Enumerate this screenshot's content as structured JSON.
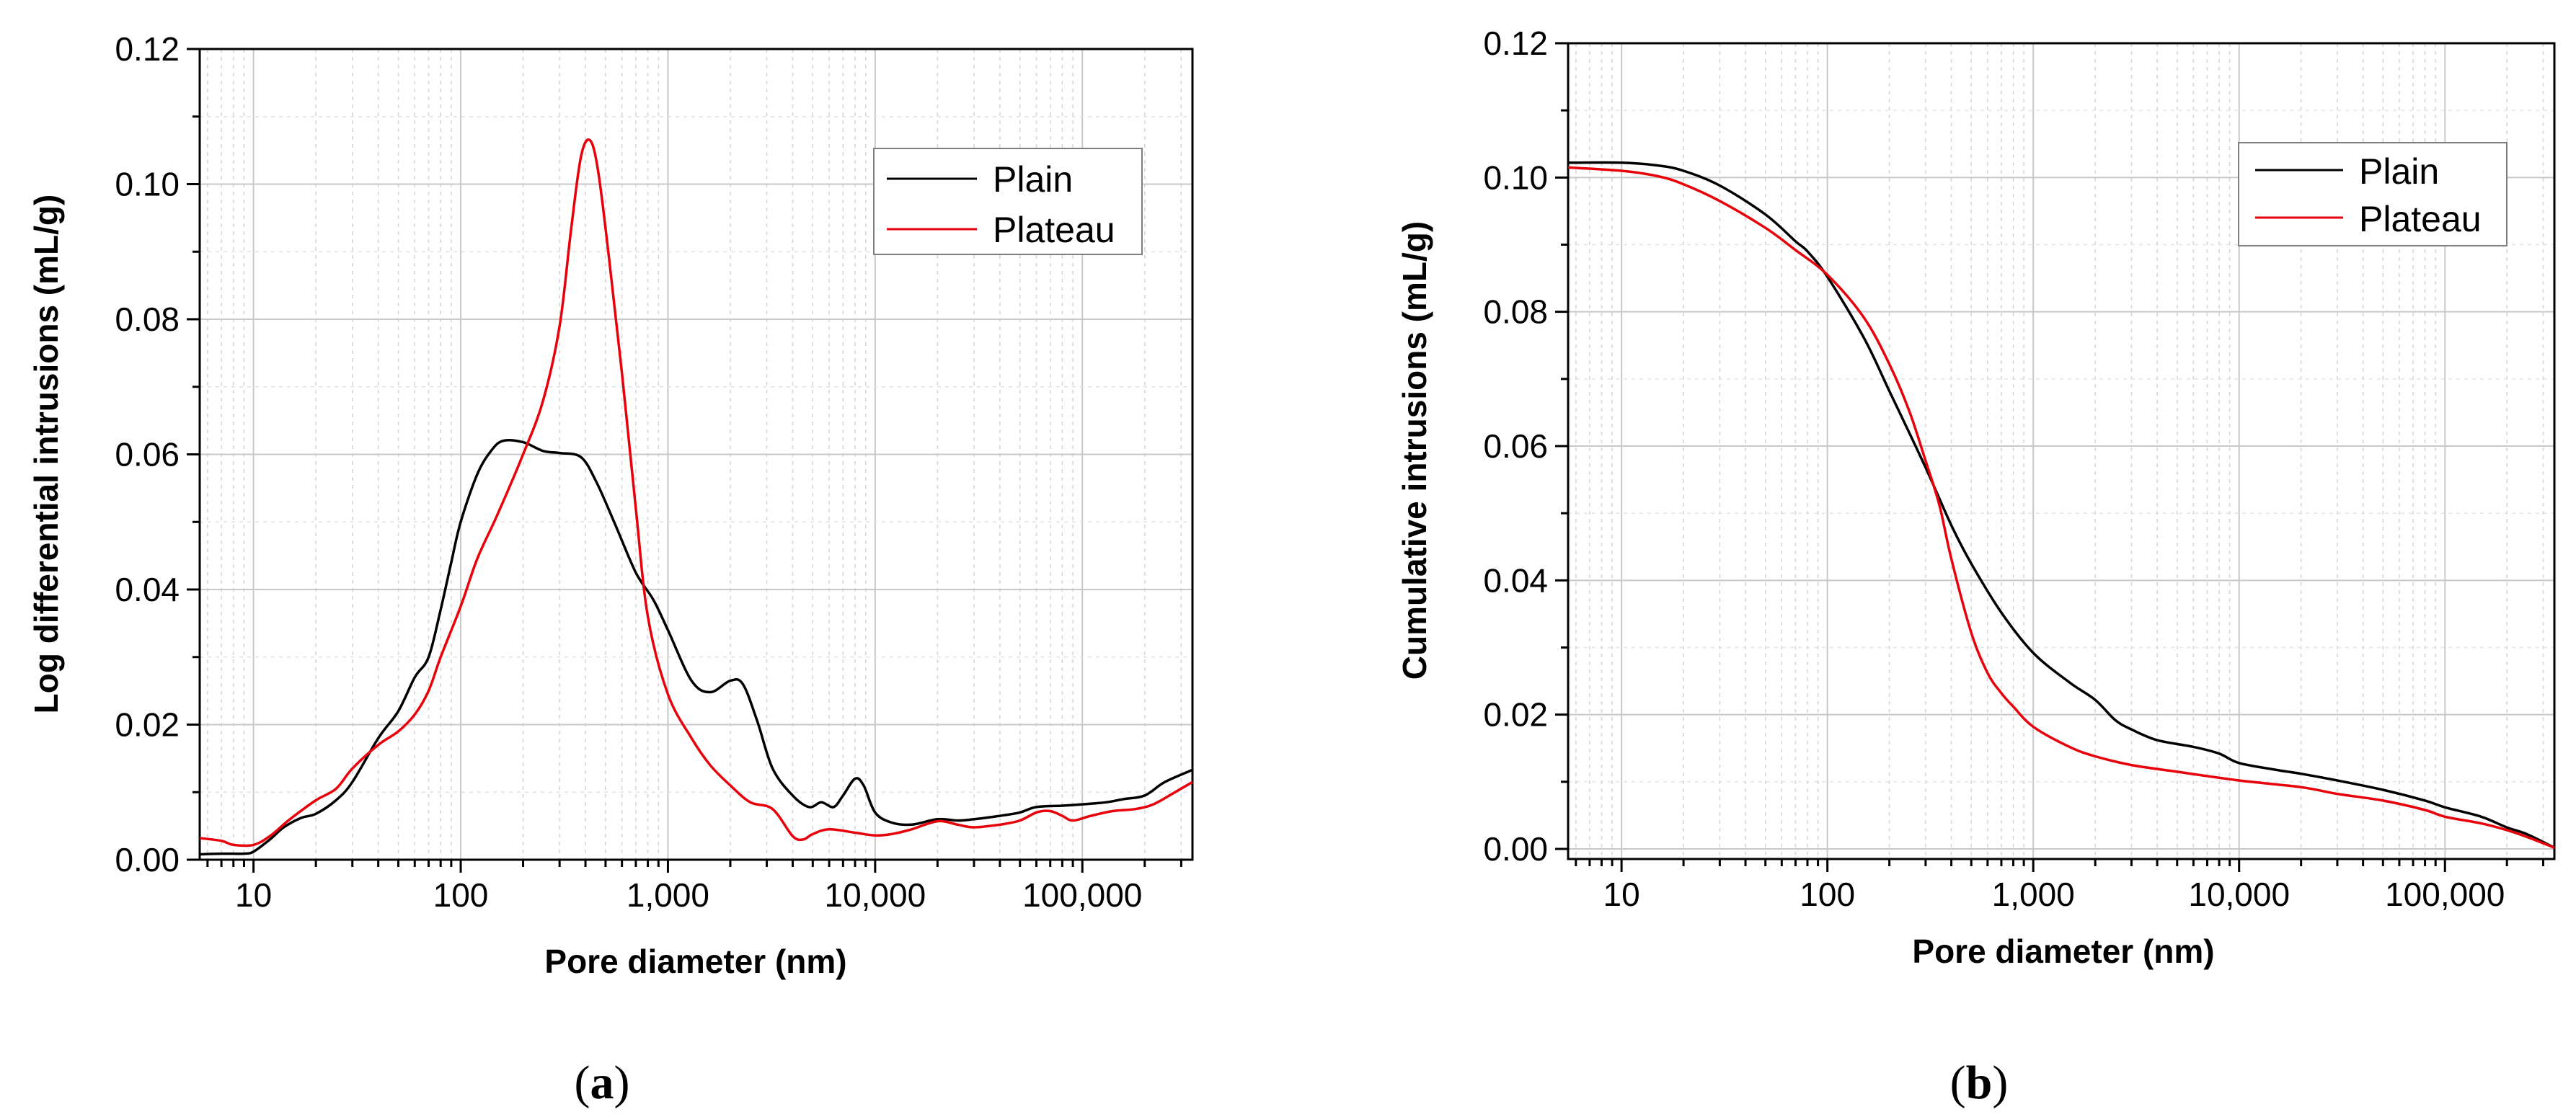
{
  "chart_data": [
    {
      "panel": "(a)",
      "panel_letter": "a",
      "type": "line",
      "xscale": "log",
      "xlim": [
        5.5,
        340000
      ],
      "ylim": [
        0,
        0.12
      ],
      "xlabel": "Pore diameter (nm)",
      "ylabel": "Log differential intrusions (mL/g)",
      "x_ticks": [
        {
          "value": 10,
          "label": "10"
        },
        {
          "value": 100,
          "label": "100"
        },
        {
          "value": 1000,
          "label": "1,000"
        },
        {
          "value": 10000,
          "label": "10,000"
        },
        {
          "value": 100000,
          "label": "100,000"
        }
      ],
      "y_ticks": [
        {
          "value": 0,
          "label": "0.00"
        },
        {
          "value": 0.02,
          "label": "0.02"
        },
        {
          "value": 0.04,
          "label": "0.04"
        },
        {
          "value": 0.06,
          "label": "0.06"
        },
        {
          "value": 0.08,
          "label": "0.08"
        },
        {
          "value": 0.1,
          "label": "0.10"
        },
        {
          "value": 0.12,
          "label": "0.12"
        }
      ],
      "grid": true,
      "legend_position": "top-right",
      "series": [
        {
          "name": "Plain",
          "color": "#000000",
          "points": [
            [
              5.5,
              0.0008
            ],
            [
              7,
              0.0009
            ],
            [
              9,
              0.0009
            ],
            [
              10,
              0.0012
            ],
            [
              12,
              0.003
            ],
            [
              14,
              0.0048
            ],
            [
              17,
              0.0062
            ],
            [
              20,
              0.0068
            ],
            [
              25,
              0.0088
            ],
            [
              30,
              0.0115
            ],
            [
              40,
              0.018
            ],
            [
              50,
              0.022
            ],
            [
              60,
              0.027
            ],
            [
              70,
              0.03
            ],
            [
              80,
              0.037
            ],
            [
              90,
              0.044
            ],
            [
              100,
              0.05
            ],
            [
              120,
              0.057
            ],
            [
              140,
              0.0605
            ],
            [
              160,
              0.062
            ],
            [
              200,
              0.0618
            ],
            [
              250,
              0.0605
            ],
            [
              300,
              0.0602
            ],
            [
              380,
              0.0596
            ],
            [
              450,
              0.056
            ],
            [
              550,
              0.05
            ],
            [
              700,
              0.0425
            ],
            [
              850,
              0.0385
            ],
            [
              1000,
              0.034
            ],
            [
              1300,
              0.0265
            ],
            [
              1600,
              0.0248
            ],
            [
              2000,
              0.0265
            ],
            [
              2300,
              0.026
            ],
            [
              2700,
              0.0205
            ],
            [
              3200,
              0.0135
            ],
            [
              4000,
              0.0095
            ],
            [
              4800,
              0.0078
            ],
            [
              5500,
              0.0085
            ],
            [
              6300,
              0.0078
            ],
            [
              7000,
              0.0095
            ],
            [
              8000,
              0.012
            ],
            [
              8800,
              0.011
            ],
            [
              10000,
              0.007
            ],
            [
              12000,
              0.0055
            ],
            [
              15000,
              0.0052
            ],
            [
              20000,
              0.006
            ],
            [
              25000,
              0.0058
            ],
            [
              30000,
              0.006
            ],
            [
              40000,
              0.0065
            ],
            [
              50000,
              0.007
            ],
            [
              60000,
              0.0078
            ],
            [
              80000,
              0.008
            ],
            [
              100000,
              0.0082
            ],
            [
              130000,
              0.0085
            ],
            [
              160000,
              0.009
            ],
            [
              200000,
              0.0095
            ],
            [
              250000,
              0.0115
            ],
            [
              340000,
              0.0133
            ]
          ]
        },
        {
          "name": "Plateau",
          "color": "#e8000b",
          "points": [
            [
              5.5,
              0.0032
            ],
            [
              7,
              0.0028
            ],
            [
              8,
              0.0022
            ],
            [
              10,
              0.0022
            ],
            [
              12,
              0.0035
            ],
            [
              15,
              0.006
            ],
            [
              20,
              0.0088
            ],
            [
              25,
              0.0105
            ],
            [
              30,
              0.0135
            ],
            [
              40,
              0.017
            ],
            [
              50,
              0.019
            ],
            [
              60,
              0.0215
            ],
            [
              70,
              0.025
            ],
            [
              80,
              0.03
            ],
            [
              100,
              0.0375
            ],
            [
              120,
              0.0445
            ],
            [
              150,
              0.051
            ],
            [
              200,
              0.06
            ],
            [
              250,
              0.068
            ],
            [
              300,
              0.079
            ],
            [
              340,
              0.093
            ],
            [
              380,
              0.104
            ],
            [
              420,
              0.1065
            ],
            [
              460,
              0.102
            ],
            [
              520,
              0.089
            ],
            [
              600,
              0.072
            ],
            [
              700,
              0.052
            ],
            [
              800,
              0.036
            ],
            [
              1000,
              0.0245
            ],
            [
              1300,
              0.018
            ],
            [
              1600,
              0.014
            ],
            [
              2000,
              0.011
            ],
            [
              2500,
              0.0085
            ],
            [
              3200,
              0.0075
            ],
            [
              4000,
              0.0035
            ],
            [
              4500,
              0.003
            ],
            [
              5000,
              0.0038
            ],
            [
              6000,
              0.0045
            ],
            [
              8000,
              0.004
            ],
            [
              10000,
              0.0036
            ],
            [
              12000,
              0.0038
            ],
            [
              15000,
              0.0045
            ],
            [
              20000,
              0.0057
            ],
            [
              25000,
              0.0052
            ],
            [
              30000,
              0.0048
            ],
            [
              40000,
              0.0052
            ],
            [
              50000,
              0.0058
            ],
            [
              60000,
              0.007
            ],
            [
              70000,
              0.0072
            ],
            [
              80000,
              0.0065
            ],
            [
              90000,
              0.0058
            ],
            [
              110000,
              0.0065
            ],
            [
              140000,
              0.0072
            ],
            [
              180000,
              0.0075
            ],
            [
              220000,
              0.0082
            ],
            [
              280000,
              0.01
            ],
            [
              340000,
              0.0115
            ]
          ]
        }
      ]
    },
    {
      "panel": "(b)",
      "panel_letter": "b",
      "type": "line",
      "xscale": "log",
      "xlim": [
        5.5,
        340000
      ],
      "ylim": [
        -0.0015,
        0.12
      ],
      "xlabel": "Pore diameter (nm)",
      "ylabel": "Cumulative intrusions (mL/g)",
      "x_ticks": [
        {
          "value": 10,
          "label": "10"
        },
        {
          "value": 100,
          "label": "100"
        },
        {
          "value": 1000,
          "label": "1,000"
        },
        {
          "value": 10000,
          "label": "10,000"
        },
        {
          "value": 100000,
          "label": "100,000"
        }
      ],
      "y_ticks": [
        {
          "value": 0,
          "label": "0.00"
        },
        {
          "value": 0.02,
          "label": "0.02"
        },
        {
          "value": 0.04,
          "label": "0.04"
        },
        {
          "value": 0.06,
          "label": "0.06"
        },
        {
          "value": 0.08,
          "label": "0.08"
        },
        {
          "value": 0.1,
          "label": "0.10"
        },
        {
          "value": 0.12,
          "label": "0.12"
        }
      ],
      "grid": true,
      "legend_position": "top-right",
      "series": [
        {
          "name": "Plain",
          "color": "#000000",
          "points": [
            [
              5.5,
              0.1022
            ],
            [
              10,
              0.1022
            ],
            [
              15,
              0.1018
            ],
            [
              20,
              0.101
            ],
            [
              30,
              0.0988
            ],
            [
              50,
              0.0945
            ],
            [
              70,
              0.0905
            ],
            [
              80,
              0.089
            ],
            [
              100,
              0.0852
            ],
            [
              150,
              0.0762
            ],
            [
              200,
              0.0682
            ],
            [
              300,
              0.0568
            ],
            [
              400,
              0.0482
            ],
            [
              500,
              0.0425
            ],
            [
              700,
              0.0352
            ],
            [
              1000,
              0.0292
            ],
            [
              1500,
              0.0248
            ],
            [
              2000,
              0.0222
            ],
            [
              2500,
              0.0192
            ],
            [
              3000,
              0.0178
            ],
            [
              4000,
              0.0162
            ],
            [
              6000,
              0.0152
            ],
            [
              8000,
              0.0142
            ],
            [
              10000,
              0.0128
            ],
            [
              15000,
              0.0118
            ],
            [
              20000,
              0.0112
            ],
            [
              30000,
              0.0102
            ],
            [
              50000,
              0.0088
            ],
            [
              80000,
              0.0072
            ],
            [
              100000,
              0.0062
            ],
            [
              150000,
              0.0048
            ],
            [
              200000,
              0.0032
            ],
            [
              250000,
              0.0022
            ],
            [
              340000,
              0.0002
            ]
          ]
        },
        {
          "name": "Plateau",
          "color": "#e8000b",
          "points": [
            [
              5.5,
              0.1015
            ],
            [
              10,
              0.101
            ],
            [
              15,
              0.1002
            ],
            [
              20,
              0.099
            ],
            [
              30,
              0.0965
            ],
            [
              50,
              0.0925
            ],
            [
              70,
              0.0892
            ],
            [
              100,
              0.0855
            ],
            [
              150,
              0.0792
            ],
            [
              200,
              0.0722
            ],
            [
              250,
              0.0652
            ],
            [
              300,
              0.0578
            ],
            [
              350,
              0.0512
            ],
            [
              400,
              0.0432
            ],
            [
              500,
              0.0322
            ],
            [
              600,
              0.0262
            ],
            [
              700,
              0.0232
            ],
            [
              800,
              0.0212
            ],
            [
              1000,
              0.0182
            ],
            [
              1500,
              0.0152
            ],
            [
              2000,
              0.0138
            ],
            [
              3000,
              0.0125
            ],
            [
              5000,
              0.0115
            ],
            [
              10000,
              0.0102
            ],
            [
              20000,
              0.0092
            ],
            [
              30000,
              0.0082
            ],
            [
              50000,
              0.0072
            ],
            [
              80000,
              0.0058
            ],
            [
              100000,
              0.0048
            ],
            [
              150000,
              0.0038
            ],
            [
              200000,
              0.0028
            ],
            [
              250000,
              0.0018
            ],
            [
              340000,
              0.0002
            ]
          ]
        }
      ]
    }
  ]
}
